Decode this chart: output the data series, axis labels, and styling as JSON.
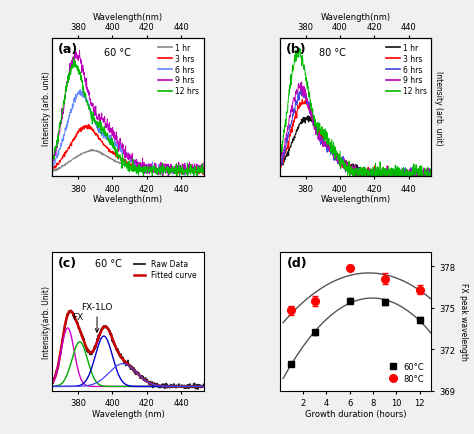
{
  "panel_a": {
    "title": "(a)",
    "temp": "60 °C",
    "xlabel": "Wavelength(nm)",
    "ylabel": "Intensity (arb. unit)",
    "xmin": 365,
    "xmax": 455,
    "legend_labels": [
      "1 hr",
      "3 hrs",
      "6 hrs",
      "9 hrs",
      "12 hrs"
    ],
    "legend_colors": [
      "#888888",
      "#ff0000",
      "#6688ff",
      "#bb00bb",
      "#00bb00"
    ]
  },
  "panel_b": {
    "title": "(b)",
    "temp": "80 °C",
    "xlabel": "Wavelength(nm)",
    "ylabel": "Intensity (arb. unit)",
    "xmin": 365,
    "xmax": 455,
    "legend_labels": [
      "1 hr",
      "3 hrs",
      "6 hrs",
      "9 hrs",
      "12 hrs"
    ],
    "legend_colors": [
      "#111111",
      "#ff0000",
      "#4444dd",
      "#bb00bb",
      "#00bb00"
    ]
  },
  "panel_c": {
    "title": "(c)",
    "temp": "60 °C",
    "xlabel": "Wavelength (nm)",
    "ylabel": "Intensity(arb. Unit)",
    "xmin": 365,
    "xmax": 455,
    "legend_labels": [
      "Raw Data",
      "Fitted curve"
    ],
    "legend_colors": [
      "#222222",
      "#cc0000"
    ],
    "gauss_colors": [
      "#cc00cc",
      "#00aa00",
      "#0000cc",
      "#4444ee"
    ]
  },
  "panel_d": {
    "title": "(d)",
    "xlabel": "Growth duration (hours)",
    "ylabel": "FX peak wavelength",
    "xmin": 0,
    "xmax": 13,
    "ymin": 369,
    "ymax": 379,
    "yticks": [
      369,
      372,
      375,
      378
    ],
    "sq_x": [
      1,
      3,
      6,
      9,
      12
    ],
    "sq_y": [
      370.9,
      373.2,
      375.5,
      375.4,
      374.1
    ],
    "sq_yerr": [
      0.15,
      0.15,
      0.2,
      0.2,
      0.2
    ],
    "circ_x": [
      1,
      3,
      6,
      9,
      12
    ],
    "circ_y": [
      374.8,
      375.5,
      377.9,
      377.1,
      376.3
    ],
    "circ_yerr": [
      0.35,
      0.35,
      0.2,
      0.4,
      0.3
    ],
    "legend_labels": [
      "60°C",
      "80°C"
    ]
  }
}
